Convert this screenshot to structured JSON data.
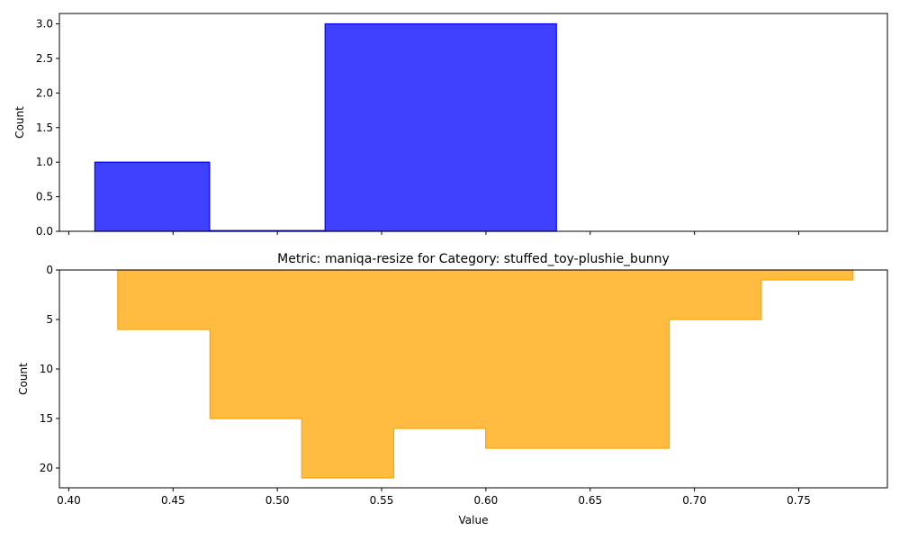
{
  "chart_data": [
    {
      "type": "bar",
      "title": "",
      "xlabel": "",
      "ylabel": "Count",
      "xlim": [
        0.3955,
        0.7925
      ],
      "ylim": [
        0,
        3.15
      ],
      "yticks": [
        0.0,
        0.5,
        1.0,
        1.5,
        2.0,
        2.5,
        3.0
      ],
      "ytick_labels": [
        "0.0",
        "0.5",
        "1.0",
        "1.5",
        "2.0",
        "2.5",
        "3.0"
      ],
      "xticks": [
        0.4,
        0.45,
        0.5,
        0.55,
        0.6,
        0.65,
        0.7,
        0.75
      ],
      "bins": [
        {
          "x0": 0.4125,
          "x1": 0.4675,
          "value": 1
        },
        {
          "x0": 0.4675,
          "x1": 0.5229,
          "value": 0
        },
        {
          "x0": 0.5229,
          "x1": 0.6338,
          "value": 3
        }
      ],
      "color": "#0000ff"
    },
    {
      "type": "area",
      "title": "Metric: maniqa-resize for Category: stuffed_toy-plushie_bunny",
      "xlabel": "Value",
      "ylabel": "Count",
      "xlim": [
        0.3955,
        0.7925
      ],
      "ylim": [
        22,
        0
      ],
      "yaxis_inverted": true,
      "yticks": [
        0,
        5,
        10,
        15,
        20
      ],
      "ytick_labels": [
        "0",
        "5",
        "10",
        "15",
        "20"
      ],
      "xticks": [
        0.4,
        0.45,
        0.5,
        0.55,
        0.6,
        0.65,
        0.7,
        0.75
      ],
      "xtick_labels": [
        "0.40",
        "0.45",
        "0.50",
        "0.55",
        "0.60",
        "0.65",
        "0.70",
        "0.75"
      ],
      "bins": [
        {
          "x0": 0.4235,
          "x1": 0.4677,
          "value": 6
        },
        {
          "x0": 0.4677,
          "x1": 0.5117,
          "value": 15
        },
        {
          "x0": 0.5117,
          "x1": 0.5558,
          "value": 21
        },
        {
          "x0": 0.5558,
          "x1": 0.5999,
          "value": 16
        },
        {
          "x0": 0.5999,
          "x1": 0.6439,
          "value": 18
        },
        {
          "x0": 0.6439,
          "x1": 0.6879,
          "value": 18
        },
        {
          "x0": 0.6879,
          "x1": 0.732,
          "value": 5
        },
        {
          "x0": 0.732,
          "x1": 0.776,
          "value": 1
        }
      ],
      "color": "#ffa500"
    }
  ]
}
